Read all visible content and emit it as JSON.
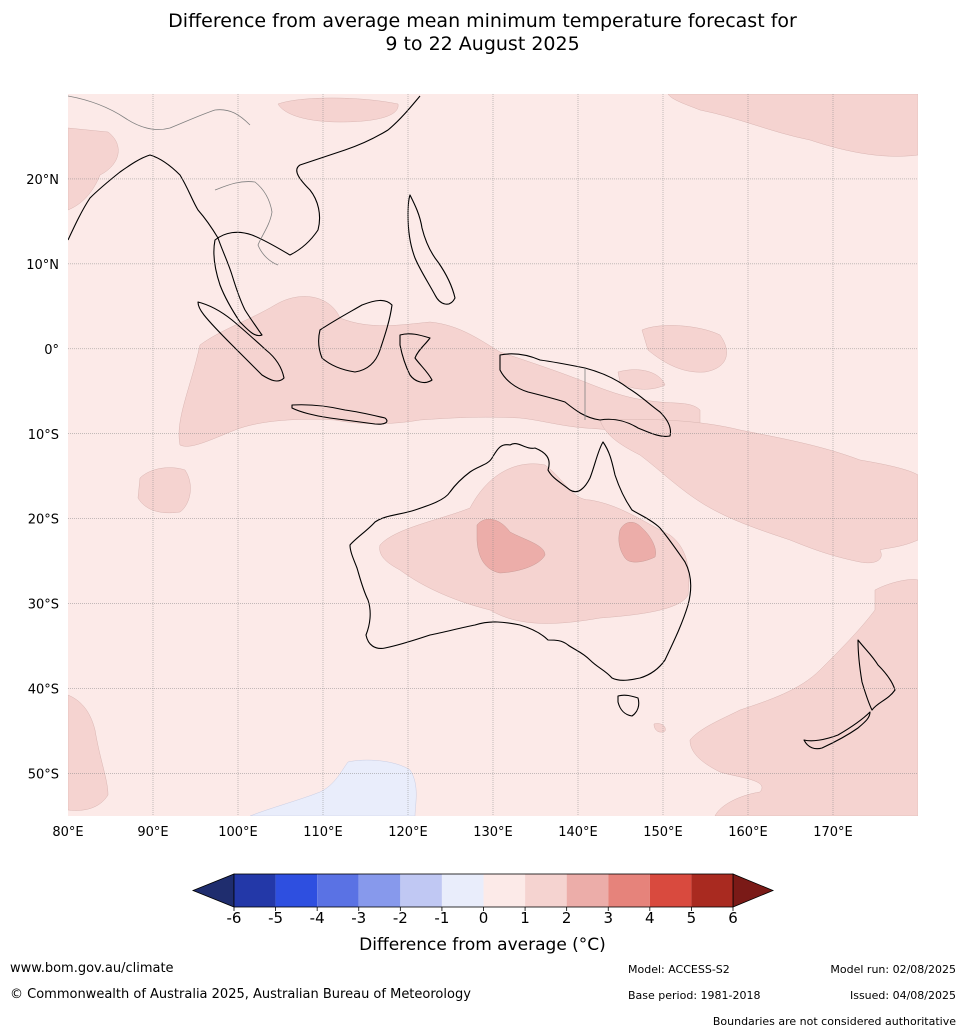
{
  "title": {
    "line1": "Difference from average mean minimum temperature forecast for",
    "line2": "9 to 22 August 2025"
  },
  "map": {
    "lon_range": [
      80,
      180
    ],
    "lat_range": [
      -55,
      30
    ],
    "lon_ticks": [
      {
        "value": 80,
        "label": "80°E"
      },
      {
        "value": 90,
        "label": "90°E"
      },
      {
        "value": 100,
        "label": "100°E"
      },
      {
        "value": 110,
        "label": "110°E"
      },
      {
        "value": 120,
        "label": "120°E"
      },
      {
        "value": 130,
        "label": "130°E"
      },
      {
        "value": 140,
        "label": "140°E"
      },
      {
        "value": 150,
        "label": "150°E"
      },
      {
        "value": 160,
        "label": "160°E"
      },
      {
        "value": 170,
        "label": "170°E"
      }
    ],
    "lat_ticks": [
      {
        "value": 20,
        "label": "20°N"
      },
      {
        "value": 10,
        "label": "10°N"
      },
      {
        "value": 0,
        "label": "0°"
      },
      {
        "value": -10,
        "label": "10°S"
      },
      {
        "value": -20,
        "label": "20°S"
      },
      {
        "value": -30,
        "label": "30°S"
      },
      {
        "value": -40,
        "label": "40°S"
      },
      {
        "value": -50,
        "label": "50°S"
      }
    ],
    "colors": {
      "background_0_to_1": "#fceae8",
      "band_1_to_2": "#f5d3d0",
      "band_2_to_3": "#ecada9",
      "band_minus1_to_0": "#e9edfb",
      "coast": "#000000",
      "border": "#808080",
      "grid": "#888888"
    }
  },
  "colorbar": {
    "title": "Difference from average (°C)",
    "labels": [
      "-6",
      "-5",
      "-4",
      "-3",
      "-2",
      "-1",
      "0",
      "1",
      "2",
      "3",
      "4",
      "5",
      "6"
    ],
    "low_extend_color": "#1f2d6e",
    "high_extend_color": "#7a1a17",
    "colors": [
      "#2338a8",
      "#2e4fe0",
      "#5a72e4",
      "#8799ec",
      "#c0c8f3",
      "#e9edfb",
      "#fceae8",
      "#f5d3d0",
      "#ecada9",
      "#e6837b",
      "#d94a3e",
      "#a92a20"
    ]
  },
  "footer": {
    "website": "www.bom.gov.au/climate",
    "copyright": "© Commonwealth of Australia 2025, Australian Bureau of Meteorology",
    "model": "Model: ACCESS-S2",
    "base_period": "Base period: 1981-2018",
    "model_run": "Model run: 02/08/2025",
    "issued": "Issued: 04/08/2025",
    "disclaimer": "Boundaries are not considered authoritative"
  }
}
